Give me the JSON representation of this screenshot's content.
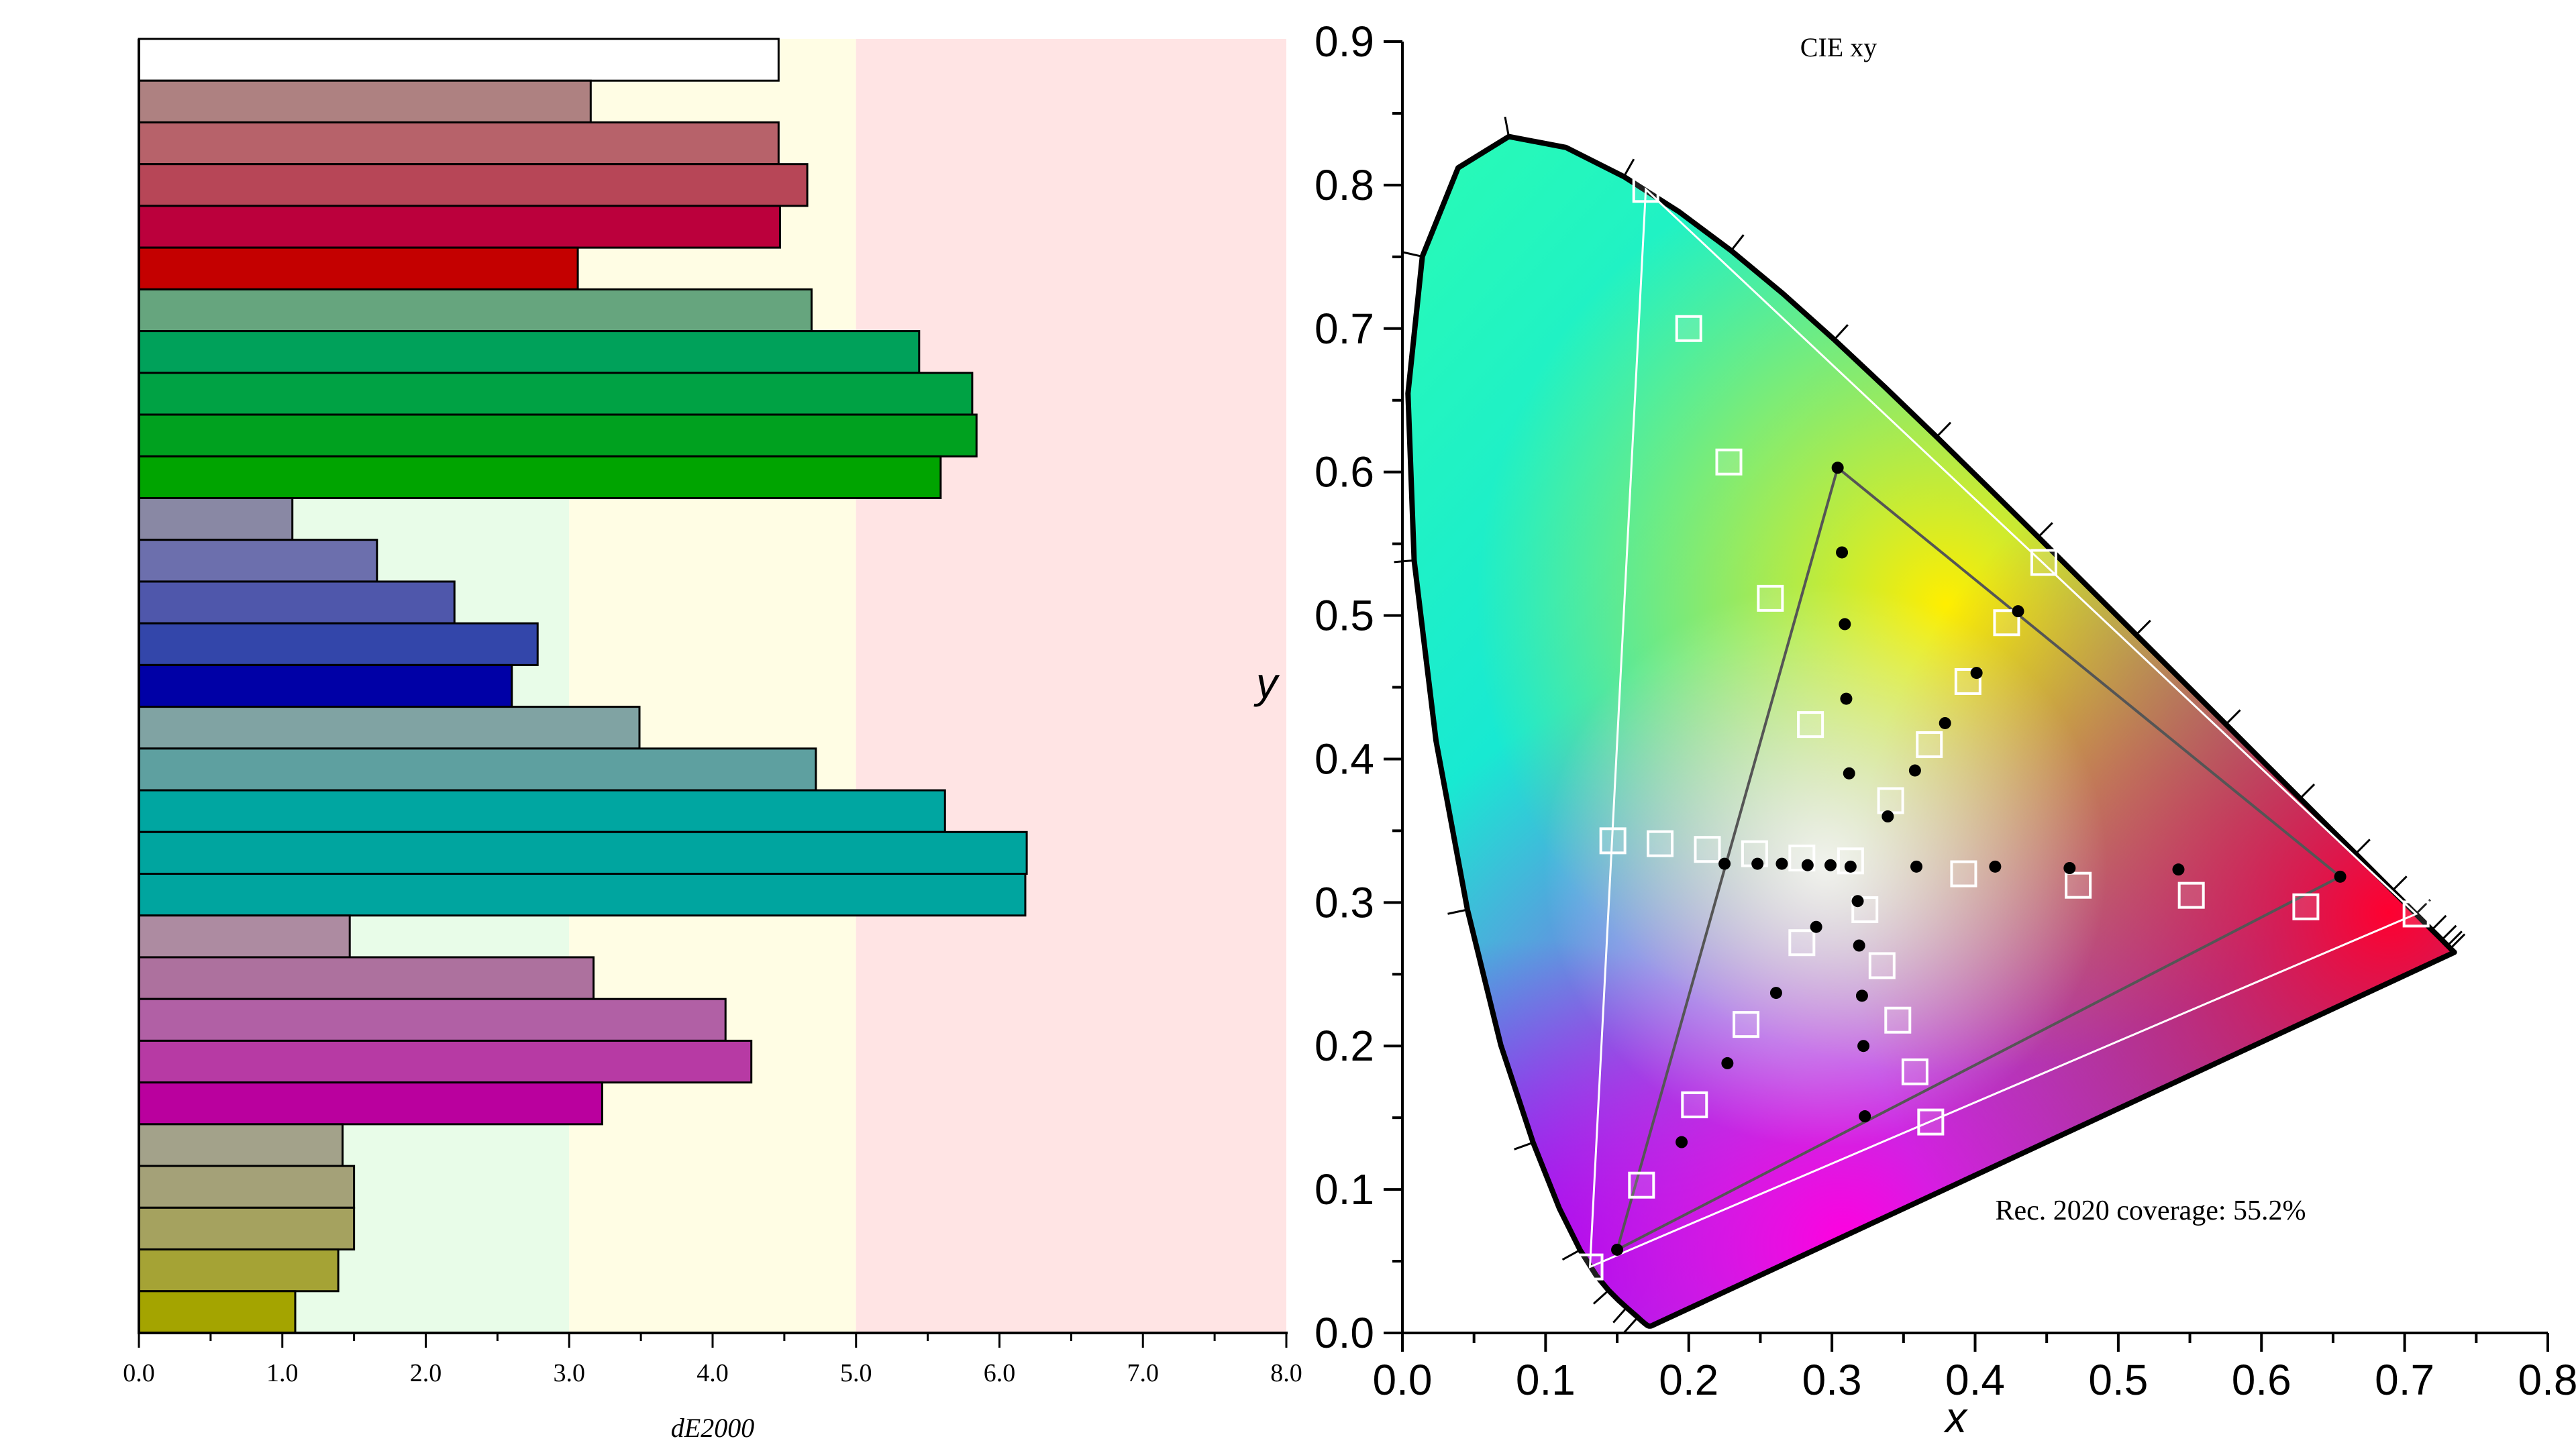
{
  "chart_data": [
    {
      "type": "bar",
      "orientation": "horizontal",
      "xlabel": "dE2000",
      "xlim": [
        0,
        8
      ],
      "xticks": [
        "0.0",
        "1.0",
        "2.0",
        "3.0",
        "4.0",
        "5.0",
        "6.0",
        "7.0",
        "8.0"
      ],
      "bands": [
        {
          "from": 0,
          "to": 3,
          "color": "#e8fce8"
        },
        {
          "from": 3,
          "to": 5,
          "color": "#fffde4"
        },
        {
          "from": 5,
          "to": 8,
          "color": "#ffe4e4"
        }
      ],
      "bars": [
        {
          "value": 4.46,
          "color": "#ffffff"
        },
        {
          "value": 3.15,
          "color": "#ae8181"
        },
        {
          "value": 4.46,
          "color": "#b7626a"
        },
        {
          "value": 4.66,
          "color": "#b74657"
        },
        {
          "value": 4.47,
          "color": "#bb003c"
        },
        {
          "value": 3.06,
          "color": "#c40000"
        },
        {
          "value": 4.69,
          "color": "#66a57e"
        },
        {
          "value": 5.44,
          "color": "#00a15a"
        },
        {
          "value": 5.81,
          "color": "#00a244"
        },
        {
          "value": 5.84,
          "color": "#00a11f"
        },
        {
          "value": 5.59,
          "color": "#00a400"
        },
        {
          "value": 1.07,
          "color": "#8988a4"
        },
        {
          "value": 1.66,
          "color": "#6c6fad"
        },
        {
          "value": 2.2,
          "color": "#4f57ab"
        },
        {
          "value": 2.78,
          "color": "#3346aa"
        },
        {
          "value": 2.6,
          "color": "#0000a6"
        },
        {
          "value": 3.49,
          "color": "#80a3a3"
        },
        {
          "value": 4.72,
          "color": "#5ea0a0"
        },
        {
          "value": 5.62,
          "color": "#00a6a1"
        },
        {
          "value": 6.19,
          "color": "#00a59f"
        },
        {
          "value": 6.18,
          "color": "#00a59f"
        },
        {
          "value": 1.47,
          "color": "#ad8ba1"
        },
        {
          "value": 3.17,
          "color": "#ad719e"
        },
        {
          "value": 4.09,
          "color": "#b160a5"
        },
        {
          "value": 4.27,
          "color": "#b73aa4"
        },
        {
          "value": 3.23,
          "color": "#ba009e"
        },
        {
          "value": 1.42,
          "color": "#a3a28a"
        },
        {
          "value": 1.5,
          "color": "#a4a178"
        },
        {
          "value": 1.5,
          "color": "#a5a25f"
        },
        {
          "value": 1.39,
          "color": "#a5a335"
        },
        {
          "value": 1.09,
          "color": "#a4a400"
        }
      ]
    },
    {
      "type": "scatter",
      "title": "CIE xy",
      "xlabel": "x",
      "ylabel": "y",
      "xlim": [
        0,
        0.8
      ],
      "ylim": [
        0,
        0.9
      ],
      "xticks": [
        "0.0",
        "0.1",
        "0.2",
        "0.3",
        "0.4",
        "0.5",
        "0.6",
        "0.7",
        "0.8"
      ],
      "yticks": [
        "0.0",
        "0.1",
        "0.2",
        "0.3",
        "0.4",
        "0.5",
        "0.6",
        "0.7",
        "0.8",
        "0.9"
      ],
      "annotation": "Rec. 2020 coverage: 55.2%",
      "rec2020_gamut": [
        [
          0.708,
          0.292
        ],
        [
          0.17,
          0.797
        ],
        [
          0.131,
          0.046
        ]
      ],
      "measured_gamut": [
        [
          0.655,
          0.318
        ],
        [
          0.304,
          0.603
        ],
        [
          0.15,
          0.058
        ]
      ],
      "target_points": [
        [
          0.17,
          0.797
        ],
        [
          0.2,
          0.7
        ],
        [
          0.228,
          0.607
        ],
        [
          0.257,
          0.512
        ],
        [
          0.285,
          0.424
        ],
        [
          0.448,
          0.537
        ],
        [
          0.422,
          0.495
        ],
        [
          0.395,
          0.454
        ],
        [
          0.368,
          0.41
        ],
        [
          0.341,
          0.371
        ],
        [
          0.147,
          0.343
        ],
        [
          0.18,
          0.341
        ],
        [
          0.213,
          0.337
        ],
        [
          0.246,
          0.334
        ],
        [
          0.279,
          0.331
        ],
        [
          0.313,
          0.329
        ],
        [
          0.392,
          0.32
        ],
        [
          0.472,
          0.312
        ],
        [
          0.551,
          0.305
        ],
        [
          0.631,
          0.297
        ],
        [
          0.708,
          0.292
        ],
        [
          0.323,
          0.295
        ],
        [
          0.335,
          0.256
        ],
        [
          0.346,
          0.218
        ],
        [
          0.358,
          0.182
        ],
        [
          0.369,
          0.147
        ],
        [
          0.279,
          0.272
        ],
        [
          0.24,
          0.215
        ],
        [
          0.204,
          0.159
        ],
        [
          0.167,
          0.103
        ],
        [
          0.131,
          0.046
        ]
      ],
      "measured_points": [
        [
          0.304,
          0.603
        ],
        [
          0.307,
          0.544
        ],
        [
          0.309,
          0.494
        ],
        [
          0.31,
          0.442
        ],
        [
          0.312,
          0.39
        ],
        [
          0.43,
          0.503
        ],
        [
          0.401,
          0.46
        ],
        [
          0.379,
          0.425
        ],
        [
          0.358,
          0.392
        ],
        [
          0.339,
          0.36
        ],
        [
          0.225,
          0.327
        ],
        [
          0.248,
          0.327
        ],
        [
          0.265,
          0.327
        ],
        [
          0.283,
          0.326
        ],
        [
          0.299,
          0.326
        ],
        [
          0.313,
          0.325
        ],
        [
          0.359,
          0.325
        ],
        [
          0.414,
          0.325
        ],
        [
          0.466,
          0.324
        ],
        [
          0.542,
          0.323
        ],
        [
          0.655,
          0.318
        ],
        [
          0.318,
          0.301
        ],
        [
          0.319,
          0.27
        ],
        [
          0.321,
          0.235
        ],
        [
          0.322,
          0.2
        ],
        [
          0.323,
          0.151
        ],
        [
          0.289,
          0.283
        ],
        [
          0.261,
          0.237
        ],
        [
          0.227,
          0.188
        ],
        [
          0.195,
          0.133
        ],
        [
          0.15,
          0.058
        ]
      ]
    }
  ]
}
